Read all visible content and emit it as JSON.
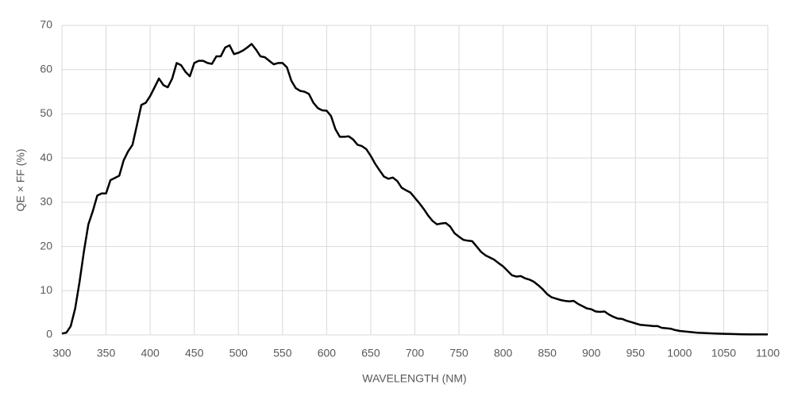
{
  "chart_data": {
    "type": "line",
    "xlabel": "WAVELENGTH (NM)",
    "ylabel": "QE × FF (%)",
    "x": [
      300,
      305,
      310,
      315,
      320,
      325,
      330,
      335,
      340,
      345,
      350,
      355,
      360,
      365,
      370,
      375,
      380,
      385,
      390,
      395,
      400,
      405,
      410,
      415,
      420,
      425,
      430,
      435,
      440,
      445,
      450,
      455,
      460,
      465,
      470,
      475,
      480,
      485,
      490,
      495,
      500,
      505,
      510,
      515,
      520,
      525,
      530,
      535,
      540,
      545,
      550,
      555,
      560,
      565,
      570,
      575,
      580,
      585,
      590,
      595,
      600,
      605,
      610,
      615,
      620,
      625,
      630,
      635,
      640,
      645,
      650,
      655,
      660,
      665,
      670,
      675,
      680,
      685,
      690,
      695,
      700,
      705,
      710,
      715,
      720,
      725,
      730,
      735,
      740,
      745,
      750,
      755,
      760,
      765,
      770,
      775,
      780,
      785,
      790,
      795,
      800,
      805,
      810,
      815,
      820,
      825,
      830,
      835,
      840,
      845,
      850,
      855,
      860,
      865,
      870,
      875,
      880,
      885,
      890,
      895,
      900,
      905,
      910,
      915,
      920,
      925,
      930,
      935,
      940,
      945,
      950,
      955,
      960,
      965,
      970,
      975,
      980,
      985,
      990,
      995,
      1000,
      1010,
      1020,
      1030,
      1040,
      1050,
      1060,
      1070,
      1080,
      1090,
      1100
    ],
    "series": [
      {
        "color": "#000000",
        "values": [
          0.3,
          0.5,
          2,
          6,
          12,
          19,
          25,
          28,
          31.5,
          32,
          32,
          35,
          35.5,
          36,
          39.5,
          41.5,
          43,
          47.5,
          52,
          52.5,
          54,
          56,
          58,
          56.5,
          56,
          58,
          61.5,
          61,
          59.5,
          58.5,
          61.5,
          62,
          62,
          61.5,
          61.3,
          63,
          63,
          65,
          65.5,
          63.5,
          63.8,
          64.3,
          65,
          65.8,
          64.5,
          63,
          62.8,
          62,
          61.2,
          61.5,
          61.5,
          60.5,
          57.5,
          55.8,
          55.2,
          55,
          54.5,
          52.5,
          51.3,
          50.8,
          50.7,
          49.5,
          46.5,
          44.8,
          44.8,
          44.9,
          44.2,
          43,
          42.7,
          42,
          40.5,
          38.7,
          37.2,
          35.8,
          35.3,
          35.6,
          34.8,
          33.3,
          32.7,
          32.2,
          31,
          29.8,
          28.5,
          27,
          25.8,
          25,
          25.2,
          25.3,
          24.5,
          23,
          22.2,
          21.5,
          21.3,
          21.2,
          20,
          18.8,
          18,
          17.5,
          17,
          16.2,
          15.5,
          14.5,
          13.5,
          13.2,
          13.3,
          12.8,
          12.5,
          12,
          11.2,
          10.3,
          9.2,
          8.5,
          8.2,
          7.9,
          7.7,
          7.6,
          7.7,
          7,
          6.5,
          6,
          5.8,
          5.3,
          5.2,
          5.3,
          4.6,
          4.1,
          3.7,
          3.6,
          3.2,
          2.9,
          2.6,
          2.3,
          2.2,
          2.1,
          2,
          2,
          1.6,
          1.5,
          1.4,
          1.1,
          0.9,
          0.7,
          0.5,
          0.4,
          0.3,
          0.25,
          0.2,
          0.15,
          0.1,
          0.1,
          0.1
        ]
      }
    ],
    "xlim": [
      300,
      1100
    ],
    "xticks": [
      300,
      350,
      400,
      450,
      500,
      550,
      600,
      650,
      700,
      750,
      800,
      850,
      900,
      950,
      1000,
      1050,
      1100
    ],
    "ylim": [
      0,
      70
    ],
    "yticks": [
      0,
      10,
      20,
      30,
      40,
      50,
      60,
      70
    ],
    "grid": true
  }
}
